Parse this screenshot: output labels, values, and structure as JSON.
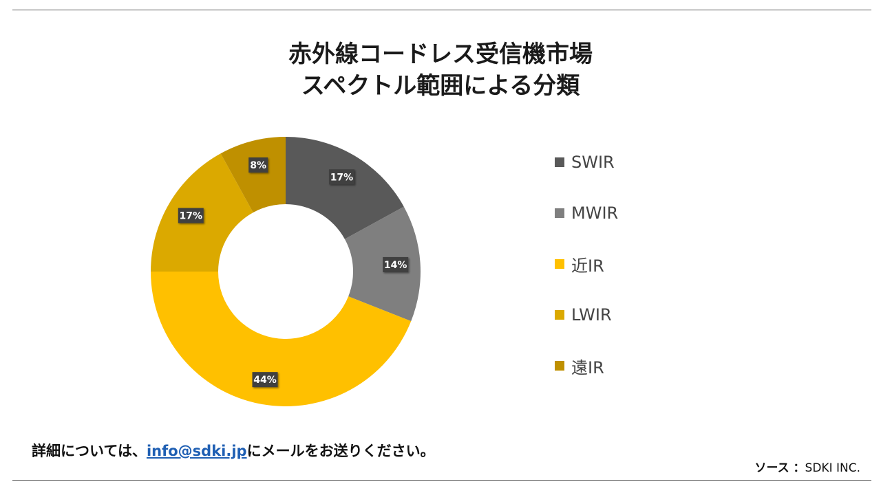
{
  "header": {
    "title_line1": "赤外線コードレス受信機市場",
    "title_line2": "スペクトル範囲による分類"
  },
  "chart_data": {
    "type": "pie",
    "donut": true,
    "categories": [
      "SWIR",
      "MWIR",
      "近IR",
      "LWIR",
      "遠IR"
    ],
    "values": [
      17,
      14,
      44,
      17,
      8
    ],
    "data_labels": [
      "17%",
      "14%",
      "44%",
      "17%",
      "8%"
    ],
    "colors": [
      "#595959",
      "#7f7f7f",
      "#ffc000",
      "#dba900",
      "#bf9000"
    ],
    "legend_position": "right",
    "start_angle_deg": 0,
    "direction": "clockwise"
  },
  "footer": {
    "note_prefix": "詳細については、",
    "email": "info@sdki.jp",
    "note_suffix": "にメールをお送りください。",
    "source_label": "ソース ：",
    "source_value": "SDKI INC."
  }
}
